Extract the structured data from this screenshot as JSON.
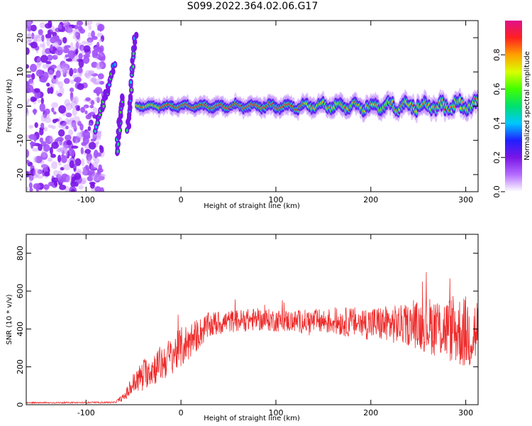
{
  "title": "S099.2022.364.02.06.G17",
  "chart_data": [
    {
      "type": "heatmap",
      "name": "spectrogram",
      "xlabel": "Height of straight line (km)",
      "ylabel": "Frequency (Hz)",
      "xlim": [
        -163,
        313
      ],
      "ylim": [
        -25,
        25
      ],
      "xticks": [
        -100,
        0,
        100,
        200,
        300
      ],
      "xtick_labels": [
        "-100",
        "0",
        "100",
        "200",
        "300"
      ],
      "yticks": [
        -20,
        -10,
        0,
        10,
        20
      ],
      "ytick_labels": [
        "-20",
        "-10",
        "0",
        "10",
        "20"
      ],
      "colorbar": {
        "label": "Normalized spectral amplitude",
        "range": [
          0,
          1
        ],
        "ticks": [
          0.0,
          0.2,
          0.4,
          0.6,
          0.8
        ],
        "tick_labels": [
          "0.0",
          "0.2",
          "0.4",
          "0.6",
          "0.8"
        ],
        "colormap": [
          "#ffffff",
          "#b46cff",
          "#7a16e6",
          "#2020ff",
          "#00c8ff",
          "#00e070",
          "#40ff00",
          "#d8ff00",
          "#ffa000",
          "#ff2020",
          "#e0108a"
        ]
      },
      "features": {
        "noise_region_x": [
          -163,
          -88
        ],
        "arc_branches": [
          {
            "x": [
              -90,
              -70
            ],
            "y": [
              -7,
              12
            ]
          },
          {
            "x": [
              -68,
              -62
            ],
            "y": [
              -14,
              3
            ]
          },
          {
            "x": [
              -56,
              -48
            ],
            "y": [
              -7,
              21
            ]
          }
        ],
        "main_ridge": {
          "x": [
            -47,
            313
          ],
          "y": 0,
          "peak_x": [
            -22,
            130
          ]
        }
      }
    },
    {
      "type": "line",
      "name": "snr",
      "xlabel": "Height of straight line (km)",
      "ylabel": "SNR (10 * v/v)",
      "xlim": [
        -163,
        313
      ],
      "ylim": [
        0,
        900
      ],
      "xticks": [
        -100,
        0,
        100,
        200,
        300
      ],
      "xtick_labels": [
        "-100",
        "0",
        "100",
        "200",
        "300"
      ],
      "yticks": [
        0,
        200,
        400,
        600,
        800
      ],
      "ytick_labels": [
        "0",
        "200",
        "400",
        "600",
        "800"
      ],
      "color": "#ee2a2a",
      "envelope": {
        "x": [
          -163,
          -70,
          -60,
          -50,
          -40,
          -30,
          -20,
          -10,
          0,
          10,
          20,
          30,
          50,
          80,
          120,
          160,
          200,
          240,
          260,
          280,
          300,
          313
        ],
        "mean": [
          10,
          12,
          40,
          110,
          160,
          190,
          220,
          260,
          300,
          340,
          380,
          420,
          440,
          450,
          440,
          440,
          430,
          420,
          420,
          400,
          380,
          380
        ],
        "spread": [
          3,
          4,
          20,
          60,
          80,
          90,
          100,
          100,
          110,
          100,
          80,
          70,
          60,
          60,
          60,
          70,
          90,
          110,
          150,
          170,
          200,
          200
        ]
      }
    }
  ]
}
